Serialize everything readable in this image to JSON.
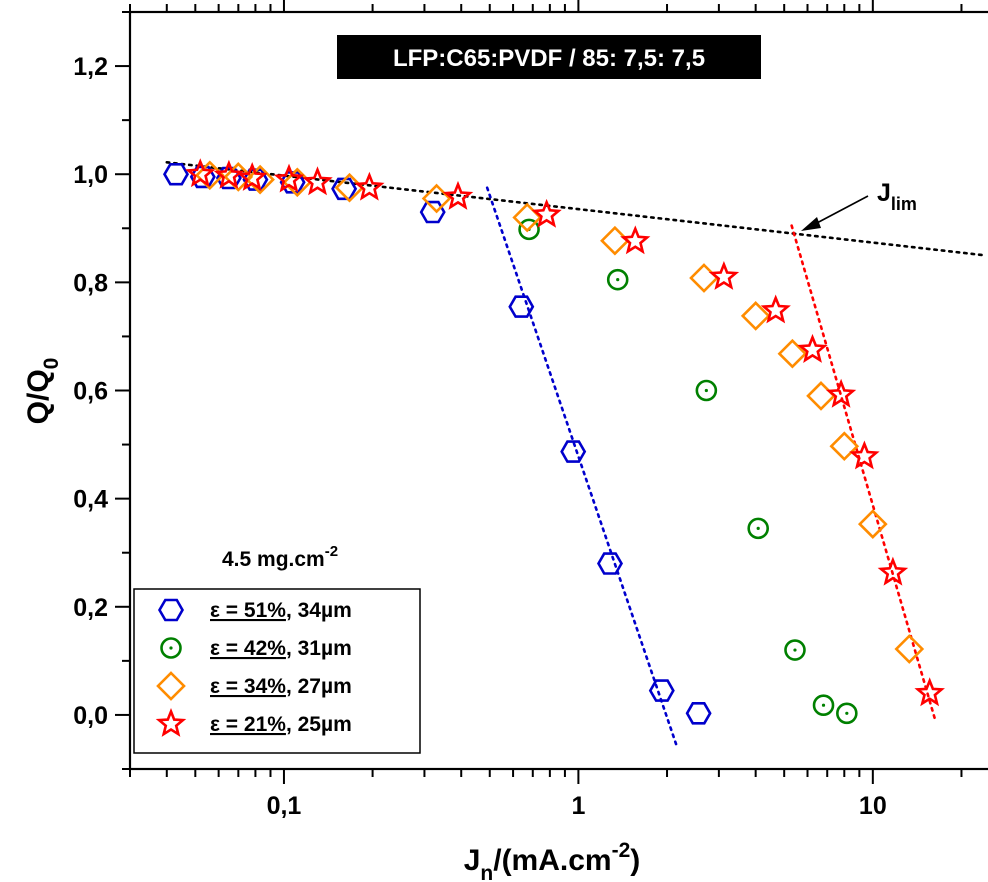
{
  "chart_data": {
    "type": "scatter",
    "title": "LFP:C65:PVDF / 85: 7,5: 7,5",
    "xlabel": {
      "base": "J",
      "sub": "n",
      "text": "/(mA.cm",
      "sup": "-2",
      "end": ")"
    },
    "ylabel": {
      "base": "Q/Q",
      "sub": "0"
    },
    "x_scale": "log",
    "xlim": [
      0.03,
      25
    ],
    "ylim": [
      -0.1,
      1.3
    ],
    "x_ticks": [
      {
        "value": 0.1,
        "label": "0,1"
      },
      {
        "value": 1,
        "label": "1"
      },
      {
        "value": 10,
        "label": "10"
      }
    ],
    "y_ticks": [
      {
        "value": 0.0,
        "label": "0,0"
      },
      {
        "value": 0.2,
        "label": "0,2"
      },
      {
        "value": 0.4,
        "label": "0,4"
      },
      {
        "value": 0.6,
        "label": "0,6"
      },
      {
        "value": 0.8,
        "label": "0,8"
      },
      {
        "value": 1.0,
        "label": "1,0"
      },
      {
        "value": 1.2,
        "label": "1,2"
      }
    ],
    "grid": false,
    "legend_position": "bottom-left",
    "legend_note": {
      "text": "4.5 mg.cm",
      "sup": "-2"
    },
    "series": [
      {
        "name": "ε = 51%",
        "thickness": ", 34µm",
        "marker": "hexagon",
        "color": "#0000cc",
        "x": [
          0.043,
          0.053,
          0.065,
          0.08,
          0.107,
          0.16,
          0.32,
          0.64,
          0.96,
          1.28,
          1.92,
          2.56
        ],
        "y": [
          1.0,
          0.995,
          0.993,
          0.99,
          0.985,
          0.973,
          0.93,
          0.755,
          0.487,
          0.28,
          0.045,
          0.003
        ]
      },
      {
        "name": "ε = 42%",
        "thickness": ", 31µm",
        "marker": "circle-dot",
        "color": "#008000",
        "x": [
          0.68,
          1.36,
          2.72,
          4.08,
          5.44,
          6.8,
          8.16
        ],
        "y": [
          0.898,
          0.805,
          0.6,
          0.345,
          0.12,
          0.018,
          0.003
        ]
      },
      {
        "name": "ε = 34%",
        "thickness": ", 27µm",
        "marker": "diamond",
        "color": "#ff8c00",
        "x": [
          0.056,
          0.07,
          0.083,
          0.111,
          0.167,
          0.33,
          0.67,
          1.33,
          2.67,
          4.0,
          5.33,
          6.67,
          8.0,
          10.0,
          13.3
        ],
        "y": [
          0.998,
          0.995,
          0.99,
          0.985,
          0.975,
          0.955,
          0.92,
          0.877,
          0.808,
          0.738,
          0.668,
          0.59,
          0.497,
          0.353,
          0.122
        ]
      },
      {
        "name": "ε = 21%",
        "thickness": ", 25µm",
        "marker": "star",
        "color": "#ff0000",
        "x": [
          0.052,
          0.065,
          0.078,
          0.104,
          0.13,
          0.195,
          0.39,
          0.78,
          1.56,
          3.12,
          4.68,
          6.24,
          7.8,
          9.36,
          11.7,
          15.6
        ],
        "y": [
          1.0,
          0.997,
          0.993,
          0.99,
          0.985,
          0.975,
          0.958,
          0.925,
          0.876,
          0.81,
          0.748,
          0.675,
          0.592,
          0.478,
          0.263,
          0.04
        ]
      }
    ],
    "trend_lines": [
      {
        "color": "#000000",
        "x": [
          0.04,
          24
        ],
        "y": [
          1.022,
          0.85
        ]
      },
      {
        "color": "#0000cc",
        "x": [
          0.49,
          2.15
        ],
        "y": [
          0.975,
          -0.055
        ]
      },
      {
        "color": "#ff0000",
        "x": [
          5.3,
          16.3
        ],
        "y": [
          0.905,
          -0.01
        ]
      }
    ],
    "annotations": [
      {
        "base": "J",
        "sub": "lim",
        "x": 5.6,
        "y": 0.895
      }
    ]
  }
}
